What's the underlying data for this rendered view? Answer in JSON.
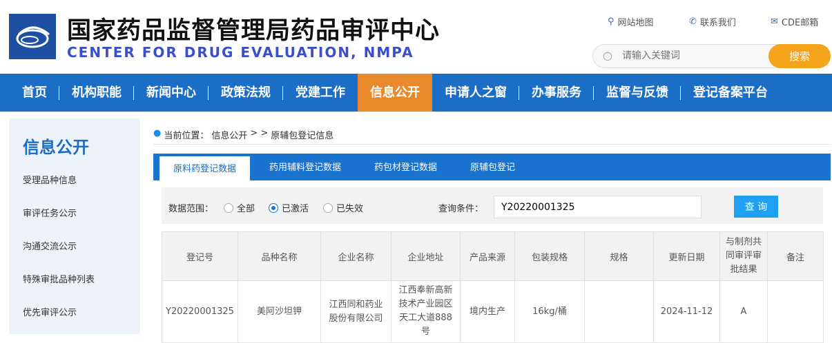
{
  "header": {
    "title_cn": "国家药品监督管理局药品审评中心",
    "title_en": "CENTER FOR DRUG EVALUATION, NMPA",
    "links": [
      {
        "icon": "map-pin-icon",
        "label": "网站地图"
      },
      {
        "icon": "phone-icon",
        "label": "联系我们"
      },
      {
        "icon": "mail-icon",
        "label": "CDE邮箱"
      }
    ],
    "search_placeholder": "请输入关键词",
    "search_button": "搜索"
  },
  "nav": [
    "首页",
    "机构职能",
    "新闻中心",
    "政策法规",
    "党建工作",
    "信息公开",
    "申请人之窗",
    "办事服务",
    "监督与反馈",
    "登记备案平台"
  ],
  "nav_active": "信息公开",
  "colors": {
    "nav": "#1b6dc6",
    "active": "#e8892b",
    "search_button": "#f7a41d"
  },
  "sidebar": {
    "title": "信息公开",
    "items": [
      "受理品种信息",
      "审评任务公示",
      "沟通交流公示",
      "特殊审批品种列表",
      "优先审评公示"
    ]
  },
  "breadcrumb": {
    "prefix": "当前位置：",
    "path1": "信息公开",
    "sep": "> >",
    "path2": "原辅包登记信息"
  },
  "tabs": [
    "原料药登记数据",
    "药用辅料登记数据",
    "药包材登记数据",
    "原辅包登记"
  ],
  "filter": {
    "label": "数据范围：",
    "options": [
      "全部",
      "已激活",
      "已失效"
    ],
    "selected": "已激活",
    "query_label": "查询条件：",
    "query_value": "Y20220001325",
    "query_button": "查 询"
  },
  "table": {
    "headers": [
      "登记号",
      "品种名称",
      "企业名称",
      "企业地址",
      "产品来源",
      "包装规格",
      "规格",
      "更新日期",
      "与制剂共同审评审批结果",
      "备注"
    ],
    "rows": [
      [
        "Y20220001325",
        "美阿沙坦钾",
        "江西同和药业股份有限公司",
        "江西奉新高新技术产业园区天工大道888号",
        "境内生产",
        "16kg/桶",
        "",
        "2024-11-12",
        "A",
        ""
      ]
    ]
  }
}
